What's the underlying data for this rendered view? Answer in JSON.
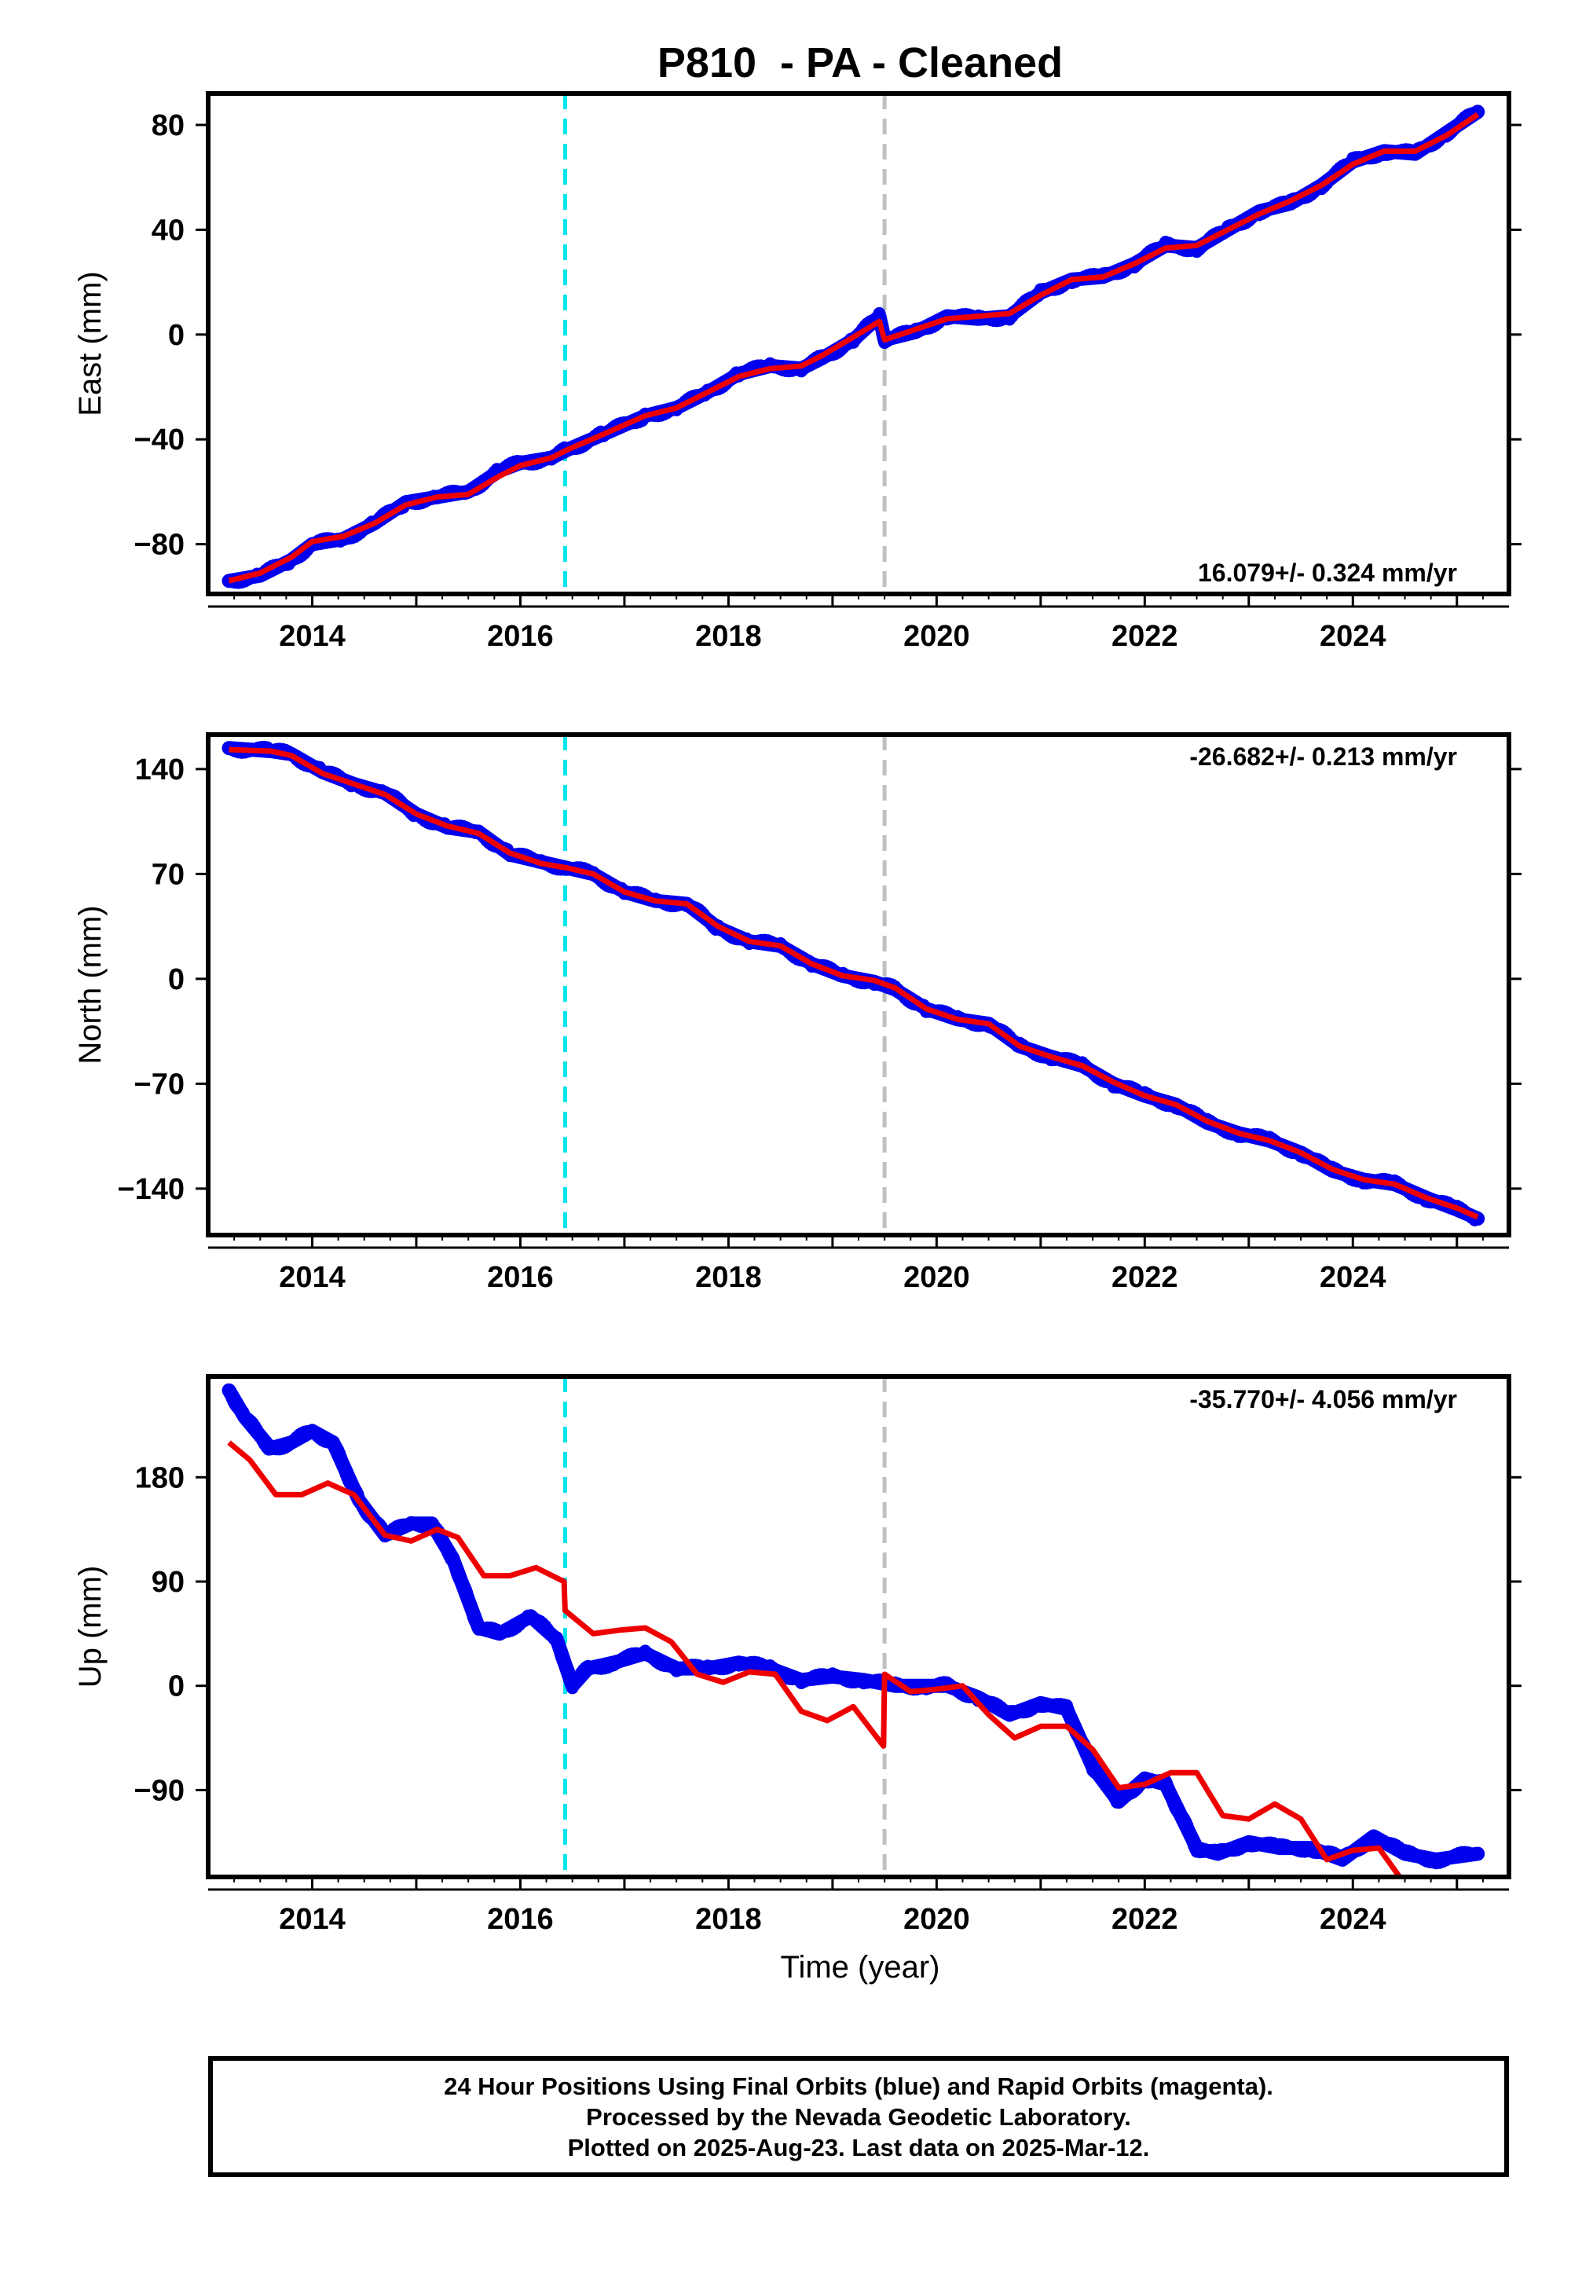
{
  "title": "P810  - PA - Cleaned",
  "xlabel": "Time (year)",
  "colors": {
    "final_orbits": "#0000ee",
    "model": "#ee0000",
    "cyan_line": "#00e5ee",
    "gray_line": "#c0c0c0",
    "frame": "#000000"
  },
  "chart_data": [
    {
      "type": "scatter",
      "component": "East",
      "ylabel": "East (mm)",
      "rate_label": "16.079+/- 0.324 mm/yr",
      "xlim": [
        2013.0,
        2025.5
      ],
      "ylim": [
        -99,
        92
      ],
      "yticks": [
        -80,
        -40,
        0,
        40,
        80
      ],
      "xticks": [
        2014,
        2016,
        2018,
        2020,
        2022,
        2024
      ],
      "vlines": [
        {
          "x": 2016.43,
          "color": "cyan"
        },
        {
          "x": 2019.5,
          "color": "gray"
        }
      ],
      "series": [
        {
          "kind": "observed",
          "x": [
            2013.2,
            2013.5,
            2013.8,
            2014.0,
            2014.3,
            2014.6,
            2014.9,
            2015.2,
            2015.5,
            2015.8,
            2016.0,
            2016.3,
            2016.45,
            2016.8,
            2017.2,
            2017.5,
            2017.8,
            2018.1,
            2018.4,
            2018.7,
            2018.9,
            2019.2,
            2019.45,
            2019.5,
            2019.8,
            2020.1,
            2020.4,
            2020.7,
            2021.0,
            2021.3,
            2021.6,
            2021.9,
            2022.2,
            2022.5,
            2022.8,
            2023.1,
            2023.4,
            2023.7,
            2024.0,
            2024.3,
            2024.6,
            2024.9,
            2025.2
          ],
          "y": [
            -94,
            -92,
            -86,
            -80,
            -78,
            -72,
            -64,
            -62,
            -60,
            -52,
            -49,
            -47,
            -44,
            -38,
            -31,
            -28,
            -22,
            -15,
            -12,
            -13,
            -9,
            -2,
            7,
            -2,
            1,
            7,
            6,
            7,
            16,
            21,
            22,
            27,
            34,
            33,
            40,
            47,
            50,
            57,
            66,
            70,
            69,
            77,
            85
          ]
        },
        {
          "kind": "model",
          "x": [
            2013.2,
            2013.5,
            2013.8,
            2014.0,
            2014.3,
            2014.6,
            2014.9,
            2015.2,
            2015.5,
            2015.8,
            2016.0,
            2016.3,
            2016.45,
            2016.8,
            2017.2,
            2017.5,
            2017.8,
            2018.1,
            2018.4,
            2018.7,
            2018.9,
            2019.2,
            2019.45,
            2019.5,
            2019.8,
            2020.1,
            2020.4,
            2020.7,
            2021.0,
            2021.3,
            2021.6,
            2021.9,
            2022.2,
            2022.5,
            2022.8,
            2023.1,
            2023.4,
            2023.7,
            2024.0,
            2024.3,
            2024.6,
            2024.9,
            2025.2
          ],
          "y": [
            -94,
            -91,
            -85,
            -79,
            -77,
            -72,
            -65,
            -62,
            -61,
            -54,
            -50,
            -47,
            -44,
            -38,
            -31,
            -28,
            -22,
            -16,
            -13,
            -12,
            -8,
            -1,
            5,
            -2,
            2,
            6,
            7,
            8,
            15,
            21,
            22,
            27,
            33,
            34,
            40,
            46,
            51,
            57,
            65,
            70,
            70,
            76,
            84
          ]
        }
      ]
    },
    {
      "type": "scatter",
      "component": "North",
      "ylabel": "North (mm)",
      "rate_label": "-26.682+/- 0.213 mm/yr",
      "xlim": [
        2013.0,
        2025.5
      ],
      "ylim": [
        -171,
        163
      ],
      "yticks": [
        -140,
        -70,
        0,
        70,
        140
      ],
      "xticks": [
        2014,
        2016,
        2018,
        2020,
        2022,
        2024
      ],
      "vlines": [
        {
          "x": 2016.43,
          "color": "cyan"
        },
        {
          "x": 2019.5,
          "color": "gray"
        }
      ],
      "series": [
        {
          "kind": "observed",
          "x": [
            2013.2,
            2013.6,
            2013.8,
            2014.1,
            2014.4,
            2014.7,
            2015.0,
            2015.3,
            2015.6,
            2015.9,
            2016.2,
            2016.45,
            2016.7,
            2017.0,
            2017.3,
            2017.6,
            2017.9,
            2018.2,
            2018.5,
            2018.8,
            2019.1,
            2019.4,
            2019.6,
            2019.9,
            2020.2,
            2020.5,
            2020.8,
            2021.1,
            2021.4,
            2021.7,
            2022.0,
            2022.3,
            2022.6,
            2022.9,
            2023.2,
            2023.5,
            2023.8,
            2024.1,
            2024.4,
            2024.7,
            2025.0,
            2025.2
          ],
          "y": [
            154,
            152,
            150,
            138,
            130,
            124,
            110,
            101,
            98,
            83,
            78,
            74,
            70,
            58,
            52,
            50,
            34,
            25,
            22,
            10,
            2,
            -2,
            -7,
            -20,
            -27,
            -30,
            -45,
            -52,
            -58,
            -70,
            -78,
            -84,
            -96,
            -103,
            -108,
            -116,
            -128,
            -134,
            -137,
            -146,
            -154,
            -160
          ]
        },
        {
          "kind": "model",
          "x": [
            2013.2,
            2013.6,
            2013.8,
            2014.1,
            2014.4,
            2014.7,
            2015.0,
            2015.3,
            2015.6,
            2015.9,
            2016.2,
            2016.45,
            2016.7,
            2017.0,
            2017.3,
            2017.6,
            2017.9,
            2018.2,
            2018.5,
            2018.8,
            2019.1,
            2019.4,
            2019.6,
            2019.9,
            2020.2,
            2020.5,
            2020.8,
            2021.1,
            2021.4,
            2021.7,
            2022.0,
            2022.3,
            2022.6,
            2022.9,
            2023.2,
            2023.5,
            2023.8,
            2024.1,
            2024.4,
            2024.7,
            2025.0,
            2025.2
          ],
          "y": [
            153,
            152,
            149,
            137,
            130,
            123,
            110,
            102,
            97,
            84,
            77,
            74,
            70,
            58,
            52,
            50,
            35,
            25,
            22,
            10,
            2,
            -1,
            -6,
            -20,
            -27,
            -30,
            -45,
            -52,
            -58,
            -69,
            -78,
            -84,
            -95,
            -103,
            -108,
            -116,
            -127,
            -134,
            -137,
            -146,
            -153,
            -159
          ]
        }
      ]
    },
    {
      "type": "scatter",
      "component": "Up",
      "ylabel": "Up (mm)",
      "rate_label": "-35.770+/- 4.056 mm/yr",
      "xlim": [
        2013.0,
        2025.5
      ],
      "ylim": [
        -165,
        267
      ],
      "yticks": [
        -90,
        0,
        90,
        180
      ],
      "xticks": [
        2014,
        2016,
        2018,
        2020,
        2022,
        2024
      ],
      "vlines": [
        {
          "x": 2016.43,
          "color": "cyan"
        },
        {
          "x": 2019.5,
          "color": "gray"
        }
      ],
      "series": [
        {
          "kind": "observed",
          "x": [
            2013.2,
            2013.35,
            2013.6,
            2013.8,
            2014.0,
            2014.2,
            2014.45,
            2014.7,
            2014.95,
            2015.15,
            2015.35,
            2015.6,
            2015.8,
            2016.1,
            2016.35,
            2016.5,
            2016.65,
            2016.9,
            2017.2,
            2017.5,
            2017.8,
            2018.1,
            2018.4,
            2018.7,
            2019.0,
            2019.3,
            2019.6,
            2019.9,
            2020.1,
            2020.4,
            2020.7,
            2021.0,
            2021.25,
            2021.5,
            2021.75,
            2022.0,
            2022.2,
            2022.5,
            2022.7,
            2023.0,
            2023.3,
            2023.6,
            2023.9,
            2024.2,
            2024.5,
            2024.8,
            2025.2
          ],
          "y": [
            255,
            232,
            205,
            210,
            220,
            210,
            160,
            130,
            140,
            140,
            110,
            50,
            45,
            60,
            40,
            0,
            15,
            20,
            28,
            15,
            15,
            20,
            15,
            5,
            8,
            5,
            0,
            0,
            0,
            -10,
            -25,
            -15,
            -20,
            -70,
            -100,
            -80,
            -85,
            -140,
            -145,
            -135,
            -140,
            -140,
            -150,
            -130,
            -145,
            -150,
            -145
          ]
        },
        {
          "kind": "model",
          "x": [
            2013.2,
            2013.4,
            2013.65,
            2013.9,
            2014.15,
            2014.4,
            2014.7,
            2014.95,
            2015.2,
            2015.4,
            2015.65,
            2015.9,
            2016.15,
            2016.42,
            2016.43,
            2016.7,
            2016.95,
            2017.2,
            2017.45,
            2017.7,
            2017.95,
            2018.2,
            2018.45,
            2018.7,
            2018.95,
            2019.2,
            2019.49,
            2019.5,
            2019.75,
            2020.0,
            2020.25,
            2020.5,
            2020.75,
            2021.0,
            2021.25,
            2021.5,
            2021.75,
            2022.0,
            2022.25,
            2022.5,
            2022.75,
            2023.0,
            2023.25,
            2023.5,
            2023.75,
            2024.0,
            2024.25,
            2024.45
          ],
          "y": [
            210,
            195,
            165,
            165,
            175,
            165,
            130,
            125,
            135,
            128,
            95,
            95,
            102,
            90,
            65,
            45,
            48,
            50,
            38,
            10,
            3,
            12,
            10,
            -22,
            -30,
            -18,
            -52,
            10,
            -5,
            -3,
            0,
            -25,
            -45,
            -35,
            -35,
            -55,
            -88,
            -85,
            -75,
            -75,
            -112,
            -115,
            -102,
            -115,
            -150,
            -142,
            -140,
            -165
          ]
        }
      ]
    }
  ],
  "footer": {
    "line1": "24 Hour Positions Using Final Orbits (blue) and Rapid Orbits (magenta).",
    "line2": "Processed by the Nevada Geodetic Laboratory.",
    "line3": "Plotted on 2025-Aug-23. Last data on 2025-Mar-12."
  }
}
